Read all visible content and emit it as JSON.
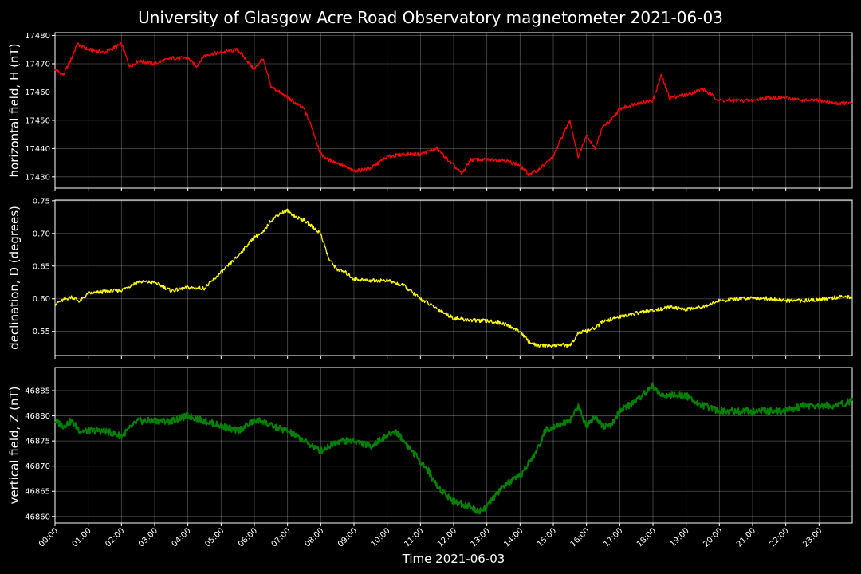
{
  "chart_data": {
    "type": "line",
    "title": "University of Glasgow Acre Road Observatory magnetometer 2021-06-03",
    "xlabel": "Time 2021-06-03",
    "x_ticks": [
      "00:00",
      "01:00",
      "02:00",
      "03:00",
      "04:00",
      "05:00",
      "06:00",
      "07:00",
      "08:00",
      "09:00",
      "10:00",
      "11:00",
      "12:00",
      "13:00",
      "14:00",
      "15:00",
      "16:00",
      "17:00",
      "18:00",
      "19:00",
      "20:00",
      "21:00",
      "22:00",
      "23:00"
    ],
    "x_range_hours": [
      0,
      24
    ],
    "grid": true,
    "panels": [
      {
        "ylabel": "horizontal field, H (nT)",
        "color": "#ff0000",
        "ylim": [
          17426,
          17481
        ],
        "y_ticks": [
          17430,
          17440,
          17450,
          17460,
          17470,
          17480
        ],
        "y_tick_labels": [
          "17430",
          "17440",
          "17450",
          "17460",
          "17470",
          "17480"
        ],
        "series": {
          "x": [
            0,
            0.25,
            0.5,
            0.67,
            1,
            1.5,
            2,
            2.25,
            2.5,
            3,
            3.5,
            4,
            4.25,
            4.5,
            5,
            5.5,
            6,
            6.25,
            6.5,
            7,
            7.5,
            7.75,
            8,
            8.25,
            8.5,
            9,
            9.5,
            10,
            10.5,
            11,
            11.5,
            12,
            12.25,
            12.5,
            13,
            13.5,
            14,
            14.25,
            14.5,
            15,
            15.25,
            15.5,
            15.75,
            16,
            16.25,
            16.5,
            16.75,
            17,
            17.5,
            18,
            18.25,
            18.5,
            19,
            19.5,
            20,
            20.5,
            21,
            21.5,
            22,
            22.5,
            23,
            23.5,
            24
          ],
          "y": [
            17468,
            17466,
            17472,
            17477,
            17475,
            17474,
            17477,
            17469,
            17471,
            17470,
            17472,
            17472,
            17469,
            17473,
            17474,
            17475,
            17468,
            17472,
            17462,
            17458,
            17454,
            17447,
            17438,
            17436,
            17435,
            17432,
            17433,
            17437,
            17438,
            17438,
            17440,
            17434,
            17431,
            17436,
            17436,
            17436,
            17434,
            17431,
            17432,
            17437,
            17444,
            17450,
            17437,
            17445,
            17440,
            17448,
            17450,
            17454,
            17456,
            17457,
            17466,
            17458,
            17459,
            17461,
            17457,
            17457,
            17457,
            17458,
            17458,
            17457,
            17457,
            17456,
            17456
          ]
        }
      },
      {
        "ylabel": "declination, D (degrees)",
        "color": "#ffff00",
        "ylim": [
          0.513,
          0.751
        ],
        "y_ticks": [
          0.55,
          0.6,
          0.65,
          0.7,
          0.75
        ],
        "y_tick_labels": [
          "0.55",
          "0.60",
          "0.65",
          "0.70",
          "0.75"
        ],
        "series": {
          "x": [
            0,
            0.25,
            0.5,
            0.75,
            1,
            1.5,
            2,
            2.5,
            3,
            3.5,
            4,
            4.5,
            5,
            5.5,
            6,
            6.25,
            6.5,
            6.75,
            7,
            7.25,
            7.5,
            7.75,
            8,
            8.25,
            8.5,
            8.75,
            9,
            9.5,
            10,
            10.5,
            11,
            11.5,
            12,
            12.5,
            13,
            13.5,
            14,
            14.25,
            14.5,
            15,
            15.25,
            15.5,
            15.75,
            16,
            16.25,
            16.5,
            17,
            17.5,
            18,
            18.5,
            19,
            19.5,
            20,
            20.5,
            21,
            21.5,
            22,
            22.5,
            23,
            23.5,
            24
          ],
          "y": [
            0.592,
            0.598,
            0.603,
            0.596,
            0.608,
            0.611,
            0.613,
            0.626,
            0.625,
            0.612,
            0.617,
            0.616,
            0.64,
            0.665,
            0.695,
            0.7,
            0.72,
            0.73,
            0.735,
            0.725,
            0.72,
            0.71,
            0.7,
            0.66,
            0.645,
            0.64,
            0.63,
            0.628,
            0.628,
            0.62,
            0.6,
            0.585,
            0.57,
            0.567,
            0.566,
            0.562,
            0.55,
            0.535,
            0.528,
            0.528,
            0.53,
            0.527,
            0.548,
            0.55,
            0.555,
            0.565,
            0.572,
            0.578,
            0.582,
            0.587,
            0.584,
            0.588,
            0.597,
            0.599,
            0.602,
            0.6,
            0.597,
            0.597,
            0.599,
            0.602,
            0.603
          ]
        }
      },
      {
        "ylabel": "vertical field, Z (nT)",
        "color": "#008000",
        "ylim": [
          46858.7,
          46889.6
        ],
        "y_ticks": [
          46860,
          46865,
          46870,
          46875,
          46880,
          46885
        ],
        "y_tick_labels": [
          "46860",
          "46865",
          "46870",
          "46875",
          "46880",
          "46885"
        ],
        "series": {
          "x": [
            0,
            0.25,
            0.5,
            0.75,
            1,
            1.5,
            2,
            2.5,
            3,
            3.5,
            4,
            4.5,
            5,
            5.5,
            6,
            6.25,
            6.5,
            7,
            7.5,
            8,
            8.5,
            9,
            9.5,
            10,
            10.25,
            10.5,
            11,
            11.25,
            11.5,
            12,
            12.5,
            12.75,
            13,
            13.5,
            14,
            14.5,
            14.75,
            15,
            15.5,
            15.75,
            16,
            16.25,
            16.5,
            16.75,
            17,
            17.5,
            18,
            18.25,
            18.5,
            19,
            19.5,
            20,
            20.5,
            21,
            21.5,
            22,
            22.5,
            23,
            23.5,
            24
          ],
          "y": [
            46879,
            46878,
            46879,
            46877,
            46877,
            46877,
            46876,
            46879,
            46879,
            46879,
            46880,
            46879,
            46878,
            46877,
            46879,
            46879,
            46878,
            46877,
            46875,
            46873,
            46875,
            46875,
            46874,
            46876,
            46877,
            46875,
            46871,
            46869,
            46866,
            46863,
            46862,
            46861,
            46862,
            46866,
            46868,
            46873,
            46877,
            46878,
            46879,
            46882,
            46878,
            46880,
            46878,
            46878,
            46881,
            46883,
            46886,
            46884,
            46884,
            46884,
            46882,
            46881,
            46881,
            46881,
            46881,
            46881,
            46882,
            46882,
            46882,
            46883
          ]
        }
      }
    ]
  }
}
